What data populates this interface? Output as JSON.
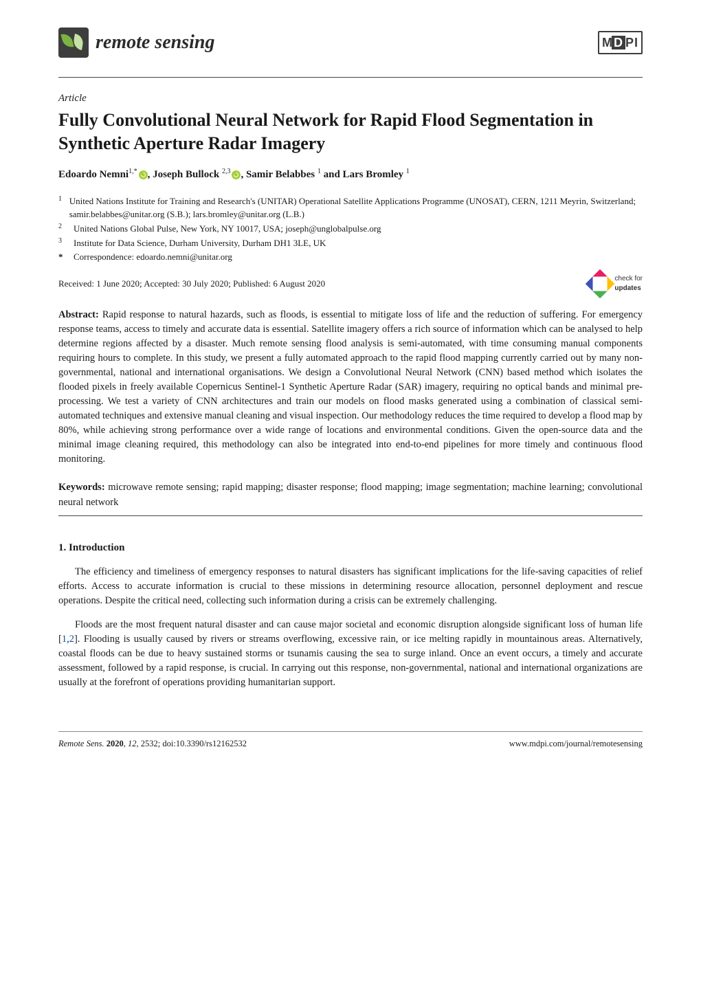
{
  "journal": {
    "name": "remote sensing"
  },
  "publisher_logo": "MDPI",
  "article_type": "Article",
  "title": "Fully Convolutional Neural Network for Rapid Flood Segmentation in Synthetic Aperture Radar Imagery",
  "authors": {
    "a1_name": "Edoardo Nemni",
    "a1_sup": "1,*",
    "a2_name": ", Joseph Bullock",
    "a2_sup": "2,3",
    "a3_name": ", Samir Belabbes",
    "a3_sup": "1",
    "a4_name": " and Lars Bromley",
    "a4_sup": "1"
  },
  "affiliations": {
    "n1": "1",
    "t1": "United Nations Institute for Training and Research's (UNITAR) Operational Satellite Applications Programme (UNOSAT), CERN, 1211 Meyrin, Switzerland; samir.belabbes@unitar.org (S.B.); lars.bromley@unitar.org (L.B.)",
    "n2": "2",
    "t2": "United Nations Global Pulse, New York, NY 10017, USA; joseph@unglobalpulse.org",
    "n3": "3",
    "t3": "Institute for Data Science, Durham University, Durham DH1 3LE, UK",
    "nstar": "*",
    "tstar": "Correspondence: edoardo.nemni@unitar.org"
  },
  "dates": "Received: 1 June 2020; Accepted: 30 July 2020; Published: 6 August 2020",
  "check_updates": {
    "line1": "check for",
    "line2": "updates"
  },
  "abstract": {
    "label": "Abstract:",
    "text": " Rapid response to natural hazards, such as floods, is essential to mitigate loss of life and the reduction of suffering. For emergency response teams, access to timely and accurate data is essential. Satellite imagery offers a rich source of information which can be analysed to help determine regions affected by a disaster. Much remote sensing flood analysis is semi-automated, with time consuming manual components requiring hours to complete. In this study, we present a fully automated approach to the rapid flood mapping currently carried out by many non-governmental, national and international organisations. We design a Convolutional Neural Network (CNN) based method which isolates the flooded pixels in freely available Copernicus Sentinel-1 Synthetic Aperture Radar (SAR) imagery, requiring no optical bands and minimal pre-processing. We test a variety of CNN architectures and train our models on flood masks generated using a combination of classical semi-automated techniques and extensive manual cleaning and visual inspection. Our methodology reduces the time required to develop a flood map by 80%, while achieving strong performance over a wide range of locations and environmental conditions. Given the open-source data and the minimal image cleaning required, this methodology can also be integrated into end-to-end pipelines for more timely and continuous flood monitoring."
  },
  "keywords": {
    "label": "Keywords:",
    "text": " microwave remote sensing; rapid mapping; disaster response; flood mapping; image segmentation; machine learning; convolutional neural network"
  },
  "section1_heading": "1. Introduction",
  "paragraphs": {
    "p1": "The efficiency and timeliness of emergency responses to natural disasters has significant implications for the life-saving capacities of relief efforts. Access to accurate information is crucial to these missions in determining resource allocation, personnel deployment and rescue operations. Despite the critical need, collecting such information during a crisis can be extremely challenging.",
    "p2a": "Floods are the most frequent natural disaster and can cause major societal and economic disruption alongside significant loss of human life [",
    "ref1": "1",
    "comma": ",",
    "ref2": "2",
    "p2b": "]. Flooding is usually caused by rivers or streams overflowing, excessive rain, or ice melting rapidly in mountainous areas. Alternatively, coastal floods can be due to heavy sustained storms or tsunamis causing the sea to surge inland. Once an event occurs, a timely and accurate assessment, followed by a rapid response, is crucial. In carrying out this response, non-governmental, national and international organizations are usually at the forefront of operations providing humanitarian support."
  },
  "footer": {
    "left_italic": "Remote Sens. ",
    "left_rest": "2020, 12, 2532; doi:10.3390/rs12162532",
    "right": "www.mdpi.com/journal/remotesensing"
  }
}
